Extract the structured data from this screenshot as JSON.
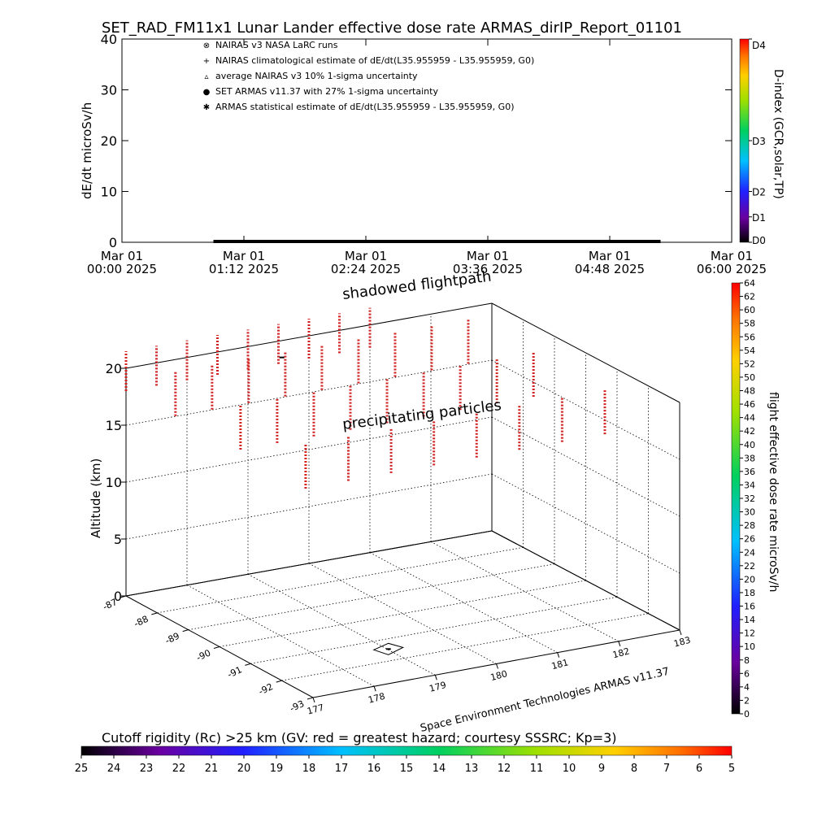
{
  "title": "SET_RAD_FM11x1  Lunar Lander effective dose rate ARMAS_dirIP_Report_01101",
  "colors": {
    "thick_line": "#000000",
    "profile_marks": "#d02020",
    "flight_marker": "#000000"
  },
  "chart_data": [
    {
      "type": "scatter",
      "ylabel": "dE/dt microSv/h",
      "ylim": [
        0,
        40
      ],
      "yticks": [
        "0",
        "10",
        "20",
        "30",
        "40"
      ],
      "xticks": [
        {
          "line1": "Mar 01",
          "line2": "00:00 2025"
        },
        {
          "line1": "Mar 01",
          "line2": "01:12 2025"
        },
        {
          "line1": "Mar 01",
          "line2": "02:24 2025"
        },
        {
          "line1": "Mar 01",
          "line2": "03:36 2025"
        },
        {
          "line1": "Mar 01",
          "line2": "04:48 2025"
        },
        {
          "line1": "Mar 01",
          "line2": "06:00 2025"
        }
      ],
      "xlim_hours": [
        0,
        6
      ],
      "flight_segment_hours": [
        0.9,
        5.3
      ],
      "legend": [
        {
          "symbol": "⊗",
          "text": "NAIRAS v3 NASA LaRC runs"
        },
        {
          "symbol": "+",
          "text": "NAIRAS climatological estimate of dE/dt(L35.955959 - L35.955959, G0)"
        },
        {
          "symbol": "▵",
          "text": "average NAIRAS v3 10% 1-sigma uncertainty"
        },
        {
          "symbol": "●",
          "text": "SET ARMAS v11.37 with 27% 1-sigma uncertainty",
          "color": "#1a3cff"
        },
        {
          "symbol": "✱",
          "text": "ARMAS statistical estimate of dE/dt(L35.955959 - L35.955959, G0)"
        }
      ],
      "right_colorbar": {
        "label": "D-index (GCR,solar,TP)",
        "ticks": [
          "D0",
          "D1",
          "D2",
          "D3",
          "D4"
        ],
        "tick_fractions": [
          0,
          0.125,
          0.25,
          0.5,
          1.0
        ]
      }
    },
    {
      "type": "scatter3d",
      "zlabel": "Altitude (km)",
      "zticks": [
        "0",
        "5",
        "10",
        "15",
        "20"
      ],
      "zlim": [
        0,
        20
      ],
      "lat_ticks": [
        "-87",
        "-88",
        "-89",
        "-90",
        "-91",
        "-92",
        "-93"
      ],
      "lon_ticks": [
        "177",
        "178",
        "179",
        "180",
        "181",
        "182",
        "183"
      ],
      "annotations": [
        "shadowed flightpath",
        "precipitating particles"
      ],
      "credit": "Space Environment Technologies ARMAS v11.37",
      "right_colorbar": {
        "label": "flight effective dose rate microSv/h",
        "ticks": [
          "0",
          "2",
          "4",
          "6",
          "8",
          "10",
          "12",
          "14",
          "16",
          "18",
          "20",
          "22",
          "24",
          "26",
          "28",
          "30",
          "32",
          "34",
          "36",
          "38",
          "40",
          "42",
          "44",
          "46",
          "48",
          "50",
          "52",
          "54",
          "56",
          "58",
          "60",
          "62",
          "64"
        ],
        "range": [
          0,
          64
        ]
      },
      "bottom_colorbar": {
        "label": "Cutoff rigidity (Rc) >25 km (GV: red = greatest hazard; courtesy SSSRC; Kp=3)",
        "ticks": [
          "25",
          "24",
          "23",
          "22",
          "21",
          "20",
          "19",
          "18",
          "17",
          "16",
          "15",
          "14",
          "13",
          "12",
          "11",
          "10",
          "9",
          "8",
          "7",
          "6",
          "5"
        ]
      },
      "profiles": [
        {
          "lon": 177.0,
          "lat": -87,
          "top": 21.5,
          "bottom": 18
        },
        {
          "lon": 177.5,
          "lat": -87,
          "top": 21.5,
          "bottom": 18
        },
        {
          "lon": 178.0,
          "lat": -87,
          "top": 21.5,
          "bottom": 18
        },
        {
          "lon": 178.5,
          "lat": -87,
          "top": 21.5,
          "bottom": 18
        },
        {
          "lon": 179.0,
          "lat": -87,
          "top": 21.5,
          "bottom": 18
        },
        {
          "lon": 179.5,
          "lat": -87,
          "top": 21.5,
          "bottom": 18
        },
        {
          "lon": 180.0,
          "lat": -87,
          "top": 21.5,
          "bottom": 18
        },
        {
          "lon": 180.5,
          "lat": -87,
          "top": 21.5,
          "bottom": 18
        },
        {
          "lon": 181.0,
          "lat": -87,
          "top": 21.5,
          "bottom": 18
        },
        {
          "lon": 177.3,
          "lat": -88,
          "top": 21.0,
          "bottom": 17
        },
        {
          "lon": 177.9,
          "lat": -88,
          "top": 21.0,
          "bottom": 17
        },
        {
          "lon": 178.5,
          "lat": -88,
          "top": 21.0,
          "bottom": 17
        },
        {
          "lon": 179.1,
          "lat": -88,
          "top": 21.0,
          "bottom": 17
        },
        {
          "lon": 179.7,
          "lat": -88,
          "top": 21.0,
          "bottom": 17
        },
        {
          "lon": 180.3,
          "lat": -88,
          "top": 21.0,
          "bottom": 17
        },
        {
          "lon": 180.9,
          "lat": -88,
          "top": 21.0,
          "bottom": 17
        },
        {
          "lon": 181.5,
          "lat": -88,
          "top": 21.0,
          "bottom": 17
        },
        {
          "lon": 182.1,
          "lat": -88,
          "top": 21.0,
          "bottom": 17
        },
        {
          "lon": 177.6,
          "lat": -89.5,
          "top": 20.0,
          "bottom": 16
        },
        {
          "lon": 178.2,
          "lat": -89.5,
          "top": 20.0,
          "bottom": 16
        },
        {
          "lon": 178.8,
          "lat": -89.5,
          "top": 20.0,
          "bottom": 16
        },
        {
          "lon": 179.4,
          "lat": -89.5,
          "top": 20.0,
          "bottom": 16
        },
        {
          "lon": 180.0,
          "lat": -89.5,
          "top": 20.0,
          "bottom": 16
        },
        {
          "lon": 180.6,
          "lat": -89.5,
          "top": 20.0,
          "bottom": 16
        },
        {
          "lon": 181.2,
          "lat": -89.5,
          "top": 20.0,
          "bottom": 16
        },
        {
          "lon": 181.8,
          "lat": -89.5,
          "top": 20.0,
          "bottom": 16
        },
        {
          "lon": 182.4,
          "lat": -89.5,
          "top": 20.0,
          "bottom": 16
        },
        {
          "lon": 177.9,
          "lat": -91,
          "top": 18.5,
          "bottom": 14.5
        },
        {
          "lon": 178.6,
          "lat": -91,
          "top": 18.5,
          "bottom": 14.5
        },
        {
          "lon": 179.3,
          "lat": -91,
          "top": 18.5,
          "bottom": 14.5
        },
        {
          "lon": 180.0,
          "lat": -91,
          "top": 18.5,
          "bottom": 14.5
        },
        {
          "lon": 180.7,
          "lat": -91,
          "top": 18.5,
          "bottom": 14.5
        },
        {
          "lon": 181.4,
          "lat": -91,
          "top": 18.5,
          "bottom": 14.5
        },
        {
          "lon": 182.1,
          "lat": -91,
          "top": 18.5,
          "bottom": 14.5
        },
        {
          "lon": 182.8,
          "lat": -91,
          "top": 18.5,
          "bottom": 14.5
        }
      ],
      "flight_marker": {
        "lon": 179.0,
        "lat": -91.5,
        "alt": 0
      }
    }
  ]
}
